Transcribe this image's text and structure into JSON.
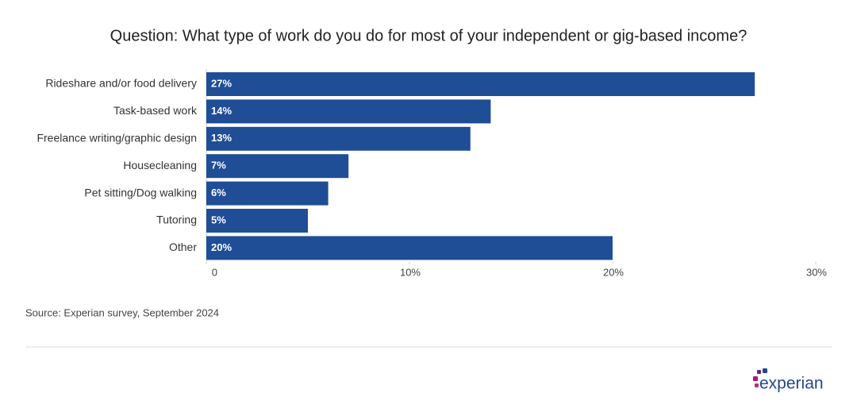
{
  "chart_data": {
    "type": "bar",
    "orientation": "horizontal",
    "title": "Question: What type of work do you do for most of your independent or gig-based income?",
    "categories": [
      "Rideshare and/or food delivery",
      "Task-based work",
      "Freelance writing/graphic design",
      "Housecleaning",
      "Pet sitting/Dog walking",
      "Tutoring",
      "Other"
    ],
    "values": [
      27,
      14,
      13,
      7,
      6,
      5,
      20
    ],
    "value_labels": [
      "27%",
      "14%",
      "13%",
      "7%",
      "6%",
      "5%",
      "20%"
    ],
    "color": "#1f4e96",
    "xlim": [
      0,
      30
    ],
    "xticks": [
      0,
      {
        "value": 10,
        "label": "10%"
      },
      {
        "value": 20,
        "label": "20%"
      },
      {
        "value": 30,
        "label": "30%"
      }
    ],
    "source": "Source: Experian survey, September 2024",
    "logo": "experian"
  }
}
